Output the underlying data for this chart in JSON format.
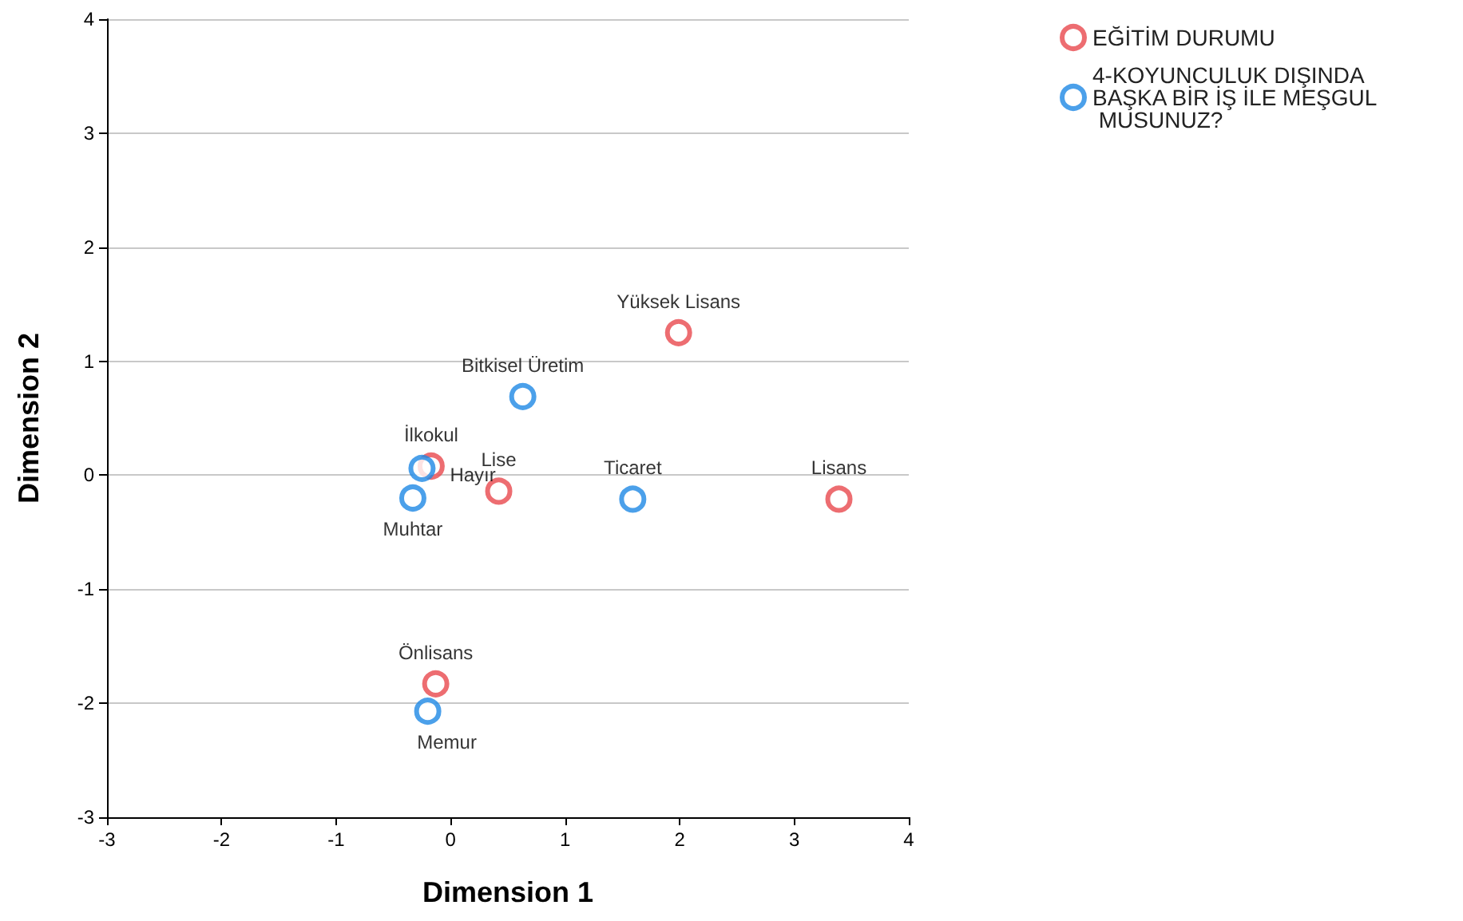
{
  "chart_data": {
    "type": "scatter",
    "xlabel": "Dimension 1",
    "ylabel": "Dimension 2",
    "xlim": [
      -3,
      4
    ],
    "xticks": [
      -3,
      -2,
      -1,
      0,
      1,
      2,
      3,
      4
    ],
    "ylim": [
      -3,
      4
    ],
    "yticks": [
      -3,
      -2,
      -1,
      0,
      1,
      2,
      3,
      4
    ],
    "grid": "y",
    "legend": "top right",
    "marker": "circle",
    "series": [
      {
        "name": "EĞİTİM DURUMU",
        "color": "#e8494d",
        "x": [
          -0.17,
          0.42,
          1.99,
          3.39,
          -0.13
        ],
        "values": [
          0.08,
          -0.14,
          1.25,
          -0.21,
          -1.83
        ],
        "value_labels": [
          "İlkokul",
          "Lise",
          "Yüksek Lisans",
          "Lisans",
          "Önlisans"
        ]
      },
      {
        "name": "4-KOYUNCULUK DIŞINDA BAŞKA BİR İŞ İLE MEŞGUL MUSUNUZ?",
        "color": "#1e88e5",
        "x": [
          -0.25,
          -0.33,
          0.63,
          1.59,
          -0.2
        ],
        "values": [
          0.06,
          -0.2,
          0.69,
          -0.21,
          -2.07
        ],
        "value_labels": [
          "Hayır",
          "Muhtar",
          "Bitkisel Üretim",
          "Ticaret",
          "Memur"
        ]
      }
    ]
  }
}
